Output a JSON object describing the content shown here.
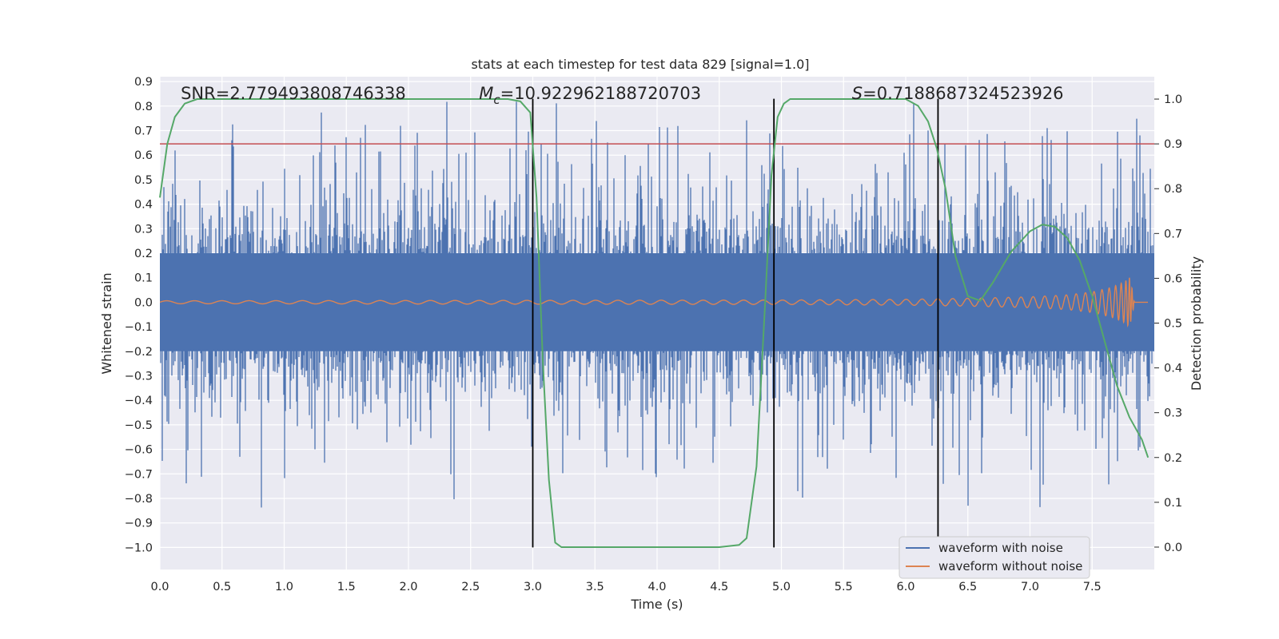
{
  "chart_data": {
    "type": "line",
    "title": "stats at each timestep for test data 829 [signal=1.0]",
    "xlabel": "Time (s)",
    "ylabel": "Whitened strain",
    "y2label": "Detection probability",
    "xlim": [
      0.0,
      8.0
    ],
    "ylim": [
      -1.09,
      0.92
    ],
    "y2lim": [
      -0.05,
      1.05
    ],
    "xticks": [
      0.0,
      0.5,
      1.0,
      1.5,
      2.0,
      2.5,
      3.0,
      3.5,
      4.0,
      4.5,
      5.0,
      5.5,
      6.0,
      6.5,
      7.0,
      7.5
    ],
    "xtick_labels": [
      "0.0",
      "0.5",
      "1.0",
      "1.5",
      "2.0",
      "2.5",
      "3.0",
      "3.5",
      "4.0",
      "4.5",
      "5.0",
      "5.5",
      "6.0",
      "6.5",
      "7.0",
      "7.5"
    ],
    "yticks": [
      0.9,
      0.8,
      0.7,
      0.6,
      0.5,
      0.4,
      0.3,
      0.2,
      0.1,
      0.0,
      -0.1,
      -0.2,
      -0.3,
      -0.4,
      -0.5,
      -0.6,
      -0.7,
      -0.8,
      -0.9,
      -1.0
    ],
    "ytick_labels": [
      "0.9",
      "0.8",
      "0.7",
      "0.6",
      "0.5",
      "0.4",
      "0.3",
      "0.2",
      "0.1",
      "0.0",
      "−0.1",
      "−0.2",
      "−0.3",
      "−0.4",
      "−0.5",
      "−0.6",
      "−0.7",
      "−0.8",
      "−0.9",
      "−1.0"
    ],
    "y2ticks": [
      1.0,
      0.9,
      0.8,
      0.7,
      0.6,
      0.5,
      0.4,
      0.3,
      0.2,
      0.1,
      0.0
    ],
    "y2tick_labels": [
      "1.0",
      "0.9",
      "0.8",
      "0.7",
      "0.6",
      "0.5",
      "0.4",
      "0.3",
      "0.2",
      "0.1",
      "0.0"
    ],
    "annotations": [
      {
        "label": "SNR=2.779493808746338",
        "x": 0.2
      },
      {
        "label": "=10.922962188720703",
        "prefix": "M",
        "subscript": "c",
        "x": 2.6
      },
      {
        "label": "=0.7188687324523926",
        "prefix": "S",
        "x": 5.6
      }
    ],
    "threshold_line": {
      "y2": 0.9,
      "color": "#c44e52"
    },
    "vertical_lines": [
      3.0,
      4.94,
      6.26
    ],
    "vertical_line_range": [
      -1.0,
      0.83
    ],
    "series": [
      {
        "name": "waveform with noise",
        "color": "#4c72b0",
        "note": "whitened strain noise, roughly |y| < 0.6 with spikes up to about 0.85"
      },
      {
        "name": "waveform without noise",
        "color": "#dd8452",
        "note": "inspiral chirp, amplitude growing until merger near t=7.8 s",
        "envelope": {
          "t": [
            0.0,
            5.0,
            6.0,
            6.5,
            7.0,
            7.3,
            7.5,
            7.65,
            7.75,
            7.8,
            7.82,
            7.84
          ],
          "amp": [
            0.006,
            0.009,
            0.012,
            0.016,
            0.022,
            0.03,
            0.042,
            0.06,
            0.08,
            0.1,
            0.06,
            0.0
          ]
        }
      },
      {
        "name": "detection probability",
        "color": "#55a868",
        "axis": "right",
        "x": [
          0.0,
          0.06,
          0.12,
          0.2,
          0.3,
          0.4,
          0.5,
          1.0,
          2.0,
          2.8,
          2.9,
          2.98,
          3.03,
          3.08,
          3.13,
          3.18,
          3.23,
          3.3,
          3.5,
          4.0,
          4.5,
          4.66,
          4.72,
          4.8,
          4.87,
          4.92,
          4.97,
          5.02,
          5.07,
          5.2,
          5.5,
          6.0,
          6.1,
          6.18,
          6.25,
          6.32,
          6.4,
          6.5,
          6.6,
          6.7,
          6.85,
          7.0,
          7.1,
          7.2,
          7.3,
          7.4,
          7.5,
          7.6,
          7.7,
          7.8,
          7.9,
          7.95
        ],
        "y": [
          0.78,
          0.9,
          0.96,
          0.99,
          1.0,
          1.0,
          1.0,
          1.0,
          1.0,
          1.0,
          0.995,
          0.97,
          0.78,
          0.42,
          0.15,
          0.01,
          0.0,
          0.0,
          0.0,
          0.0,
          0.0,
          0.005,
          0.02,
          0.18,
          0.55,
          0.83,
          0.96,
          0.99,
          1.0,
          1.0,
          1.0,
          1.0,
          0.985,
          0.95,
          0.89,
          0.8,
          0.65,
          0.56,
          0.55,
          0.59,
          0.66,
          0.705,
          0.72,
          0.715,
          0.69,
          0.64,
          0.56,
          0.46,
          0.36,
          0.29,
          0.24,
          0.2
        ]
      }
    ],
    "legend": {
      "location": "lower-right",
      "entries": [
        "waveform with noise",
        "waveform without noise"
      ]
    }
  }
}
